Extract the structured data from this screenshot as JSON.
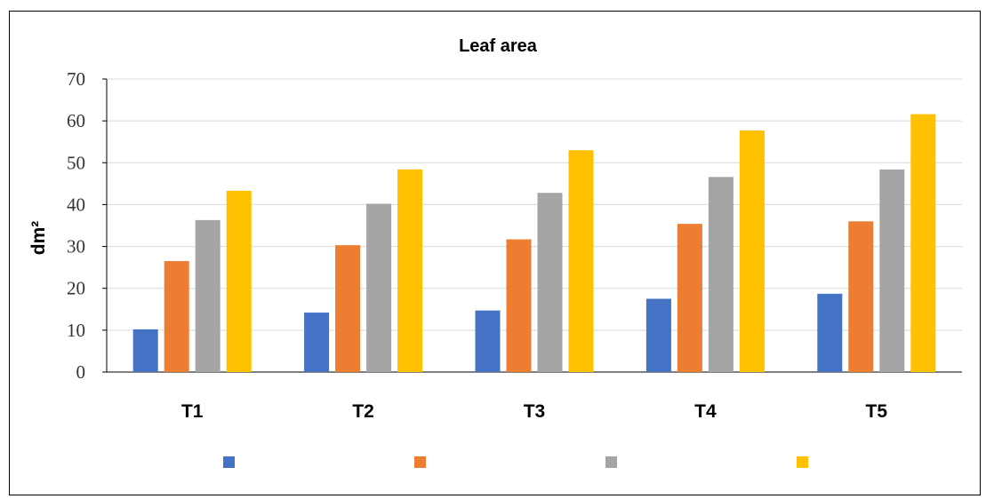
{
  "chart_data": {
    "type": "bar",
    "title": "Leaf area",
    "xlabel": "",
    "ylabel": "dm²",
    "ylim": [
      0,
      70
    ],
    "yticks": [
      0,
      10,
      20,
      30,
      40,
      50,
      60,
      70
    ],
    "grid": true,
    "legend_position": "bottom",
    "categories": [
      "T1",
      "T2",
      "T3",
      "T4",
      "T5"
    ],
    "series": [
      {
        "values": [
          10.2,
          14.2,
          14.7,
          17.5,
          18.7
        ],
        "color": "#4472c4"
      },
      {
        "values": [
          26.5,
          30.3,
          31.7,
          35.4,
          36.0
        ],
        "color": "#ed7d31"
      },
      {
        "values": [
          36.3,
          40.2,
          42.8,
          46.6,
          48.4
        ],
        "color": "#a5a5a5"
      },
      {
        "values": [
          43.3,
          48.4,
          53.0,
          57.7,
          61.6
        ],
        "color": "#ffc000"
      }
    ]
  }
}
